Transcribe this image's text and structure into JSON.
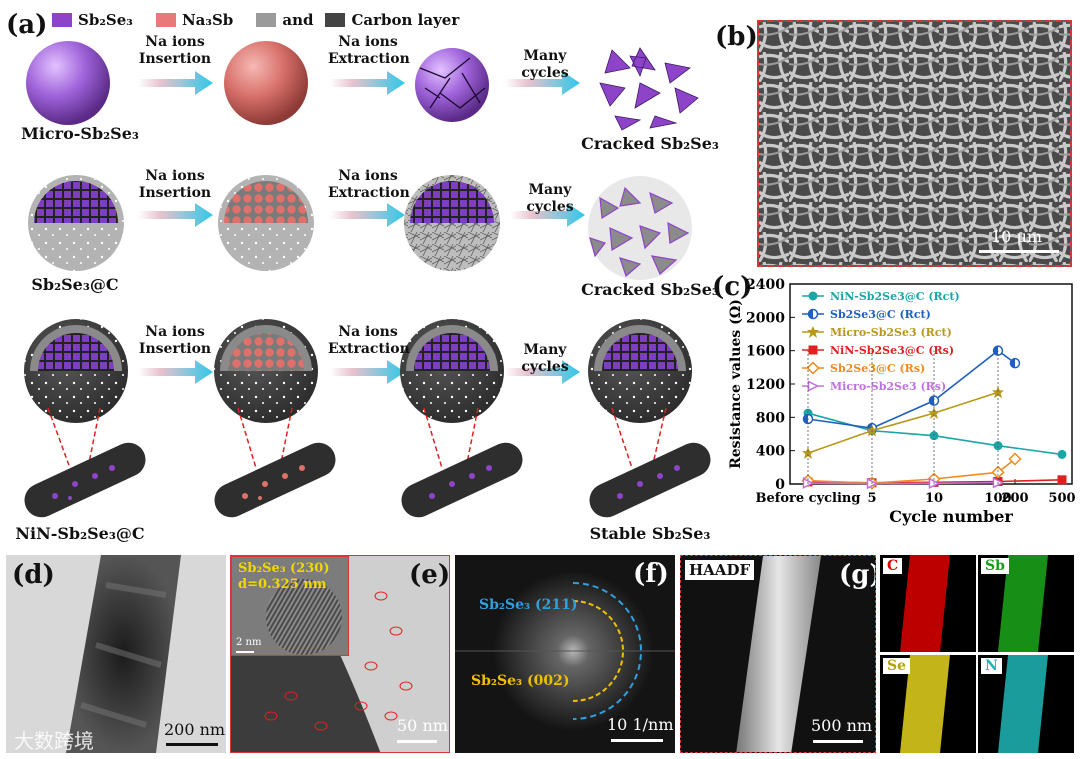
{
  "panels": {
    "a": "(a)",
    "b": "(b)",
    "c": "(c)",
    "d": "(d)",
    "e": "(e)",
    "f": "(f)",
    "g": "(g)"
  },
  "legend": {
    "sb2se3": "Sb₂Se₃",
    "na3sb": "Na₃Sb",
    "and": "and",
    "carbon": "Carbon layer",
    "colors": {
      "sb2se3": "#8e44c9",
      "na3sb": "#e8797a",
      "grey": "#9a9a9a",
      "dark": "#444444"
    }
  },
  "schematic": {
    "rows": [
      {
        "start_label": "Micro-Sb₂Se₃",
        "end_label": "Cracked Sb₂Se₃"
      },
      {
        "start_label": "Sb₂Se₃@C",
        "end_label": "Cracked Sb₂Se₃"
      },
      {
        "start_label": "NiN-Sb₂Se₃@C",
        "end_label": "Stable Sb₂Se₃"
      }
    ],
    "arrows": {
      "insertion": "Na ions Insertion",
      "extraction": "Na ions Extraction",
      "cycles": "Many cycles"
    }
  },
  "sem": {
    "scale": "10 μm"
  },
  "tem_d": {
    "scale": "200 nm"
  },
  "tem_e": {
    "scale": "50 nm",
    "inset_title": "Sb₂Se₃ (230)",
    "inset_d": "d=0.325 nm",
    "inset_scale": "2 nm"
  },
  "fft_f": {
    "ring1": "Sb₂Se₃ (211)",
    "ring2": "Sb₂Se₃ (002)",
    "scale": "10 1/nm"
  },
  "eds_g": {
    "haadf": "HAADF",
    "scale": "500 nm",
    "maps": [
      "C",
      "Sb",
      "Se",
      "N"
    ]
  },
  "watermark": "大数跨境",
  "chart_data": {
    "type": "line",
    "xlabel": "Cycle number",
    "ylabel": "Resistance values (Ω)",
    "categories": [
      "Before cycling",
      "5",
      "10",
      "100",
      "200",
      "500"
    ],
    "ylim": [
      0,
      2400
    ],
    "yticks": [
      0,
      400,
      800,
      1200,
      1600,
      2000,
      2400
    ],
    "series": [
      {
        "name": "NiN-Sb₂Se₃@C (Rᴄₜ)",
        "legend": "NiN-Sb2Se3@C (Rct)",
        "color": "#1aa6a6",
        "marker": "circle",
        "points": [
          [
            "Before cycling",
            850
          ],
          [
            "5",
            640
          ],
          [
            "10",
            580
          ],
          [
            "100",
            460
          ],
          [
            "500",
            355
          ]
        ]
      },
      {
        "name": "Sb2Se3@C (Rct)",
        "legend": "Sb2Se3@C (Rct)",
        "color": "#1f5fbf",
        "marker": "half-circle",
        "points": [
          [
            "Before cycling",
            780
          ],
          [
            "5",
            670
          ],
          [
            "10",
            1000
          ],
          [
            "100",
            1600
          ],
          [
            "200",
            1450
          ]
        ]
      },
      {
        "name": "Micro-Sb2Se3 (Rct)",
        "legend": "Micro-Sb2Se3 (Rct)",
        "color": "#b8971c",
        "marker": "star",
        "points": [
          [
            "Before cycling",
            370
          ],
          [
            "5",
            640
          ],
          [
            "10",
            850
          ],
          [
            "100",
            1100
          ]
        ]
      },
      {
        "name": "NiN-Sb2Se3@C (Rs)",
        "legend": "NiN-Sb2Se3@C (Rs)",
        "color": "#e02020",
        "marker": "square",
        "points": [
          [
            "Before cycling",
            25
          ],
          [
            "5",
            15
          ],
          [
            "10",
            20
          ],
          [
            "100",
            30
          ],
          [
            "500",
            50
          ]
        ]
      },
      {
        "name": "Sb2Se3@C (Rs)",
        "legend": "Sb2Se3@C (Rs)",
        "color": "#f08a1c",
        "marker": "diamond",
        "points": [
          [
            "Before cycling",
            40
          ],
          [
            "5",
            10
          ],
          [
            "10",
            60
          ],
          [
            "100",
            140
          ],
          [
            "200",
            300
          ]
        ]
      },
      {
        "name": "Micro-Sb2Se3 (Rs)",
        "legend": "Micro-Sb2Se3 (Rs)",
        "color": "#c070e0",
        "marker": "triangle",
        "points": [
          [
            "Before cycling",
            10
          ],
          [
            "5",
            5
          ],
          [
            "10",
            8
          ],
          [
            "100",
            15
          ]
        ]
      }
    ]
  }
}
